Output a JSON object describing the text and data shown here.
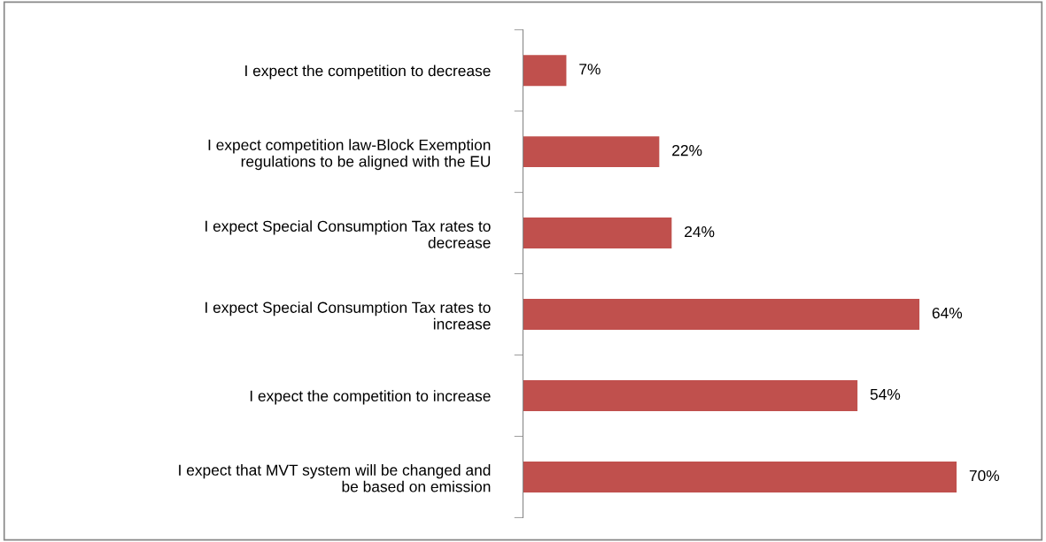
{
  "chart_data": {
    "type": "bar",
    "orientation": "horizontal",
    "data_labels": true,
    "grid": false,
    "legend": false,
    "categories": [
      "I expect the competition to decrease",
      "I expect competition law-Block Exemption\nregulations to be aligned with the EU",
      "I expect Special Consumption Tax rates to\ndecrease",
      "I expect Special Consumption Tax rates to\nincrease",
      "I expect the competition to increase",
      "I expect that MVT system will be changed and\nbe based on emission"
    ],
    "values": [
      7,
      22,
      24,
      64,
      54,
      70
    ],
    "value_labels": [
      "7%",
      "22%",
      "24%",
      "64%",
      "54%",
      "70%"
    ],
    "color": "#c0504d"
  }
}
